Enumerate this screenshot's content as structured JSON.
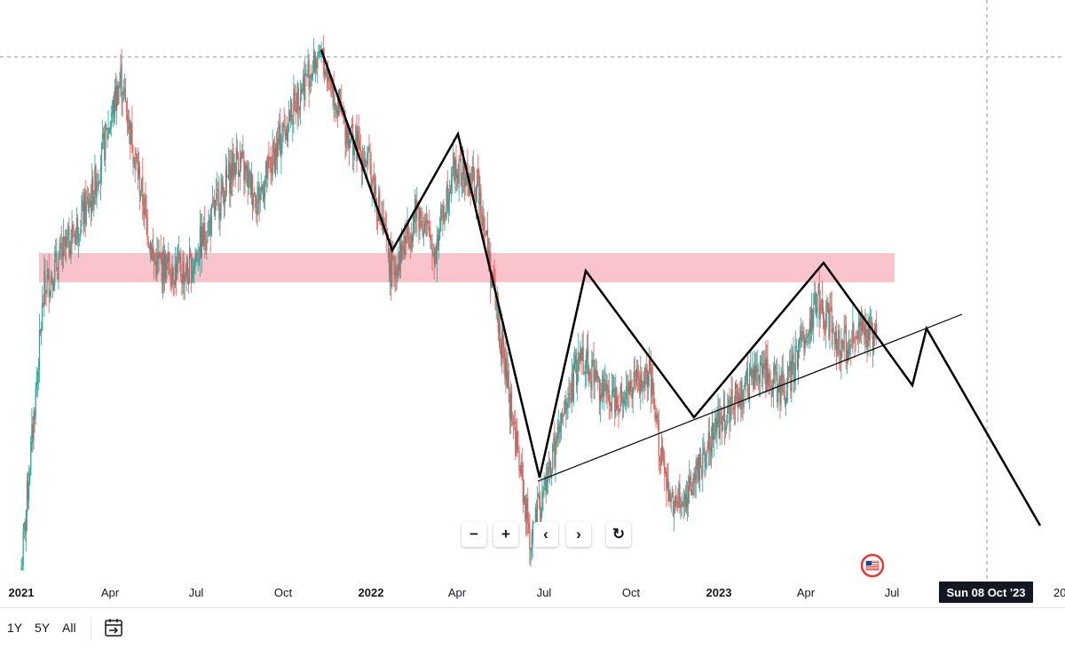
{
  "chart_data": {
    "type": "candlestick",
    "title": "",
    "x_axis_labels": [
      "2021",
      "Apr",
      "Jul",
      "Oct",
      "2022",
      "Apr",
      "Jul",
      "Oct",
      "2023",
      "Apr",
      "Jul",
      "20"
    ],
    "bold_labels": [
      "2021",
      "2022",
      "2023"
    ],
    "crosshair_date": "Sun 08 Oct '23",
    "series": [
      {
        "name": "",
        "swing_points": [
          [
            "2021-01-01",
            0.02
          ],
          [
            "2021-01-25",
            0.55
          ],
          [
            "2021-03-15",
            0.72
          ],
          [
            "2021-04-15",
            0.95
          ],
          [
            "2021-05-20",
            0.6
          ],
          [
            "2021-06-25",
            0.58
          ],
          [
            "2021-08-15",
            0.8
          ],
          [
            "2021-09-05",
            0.72
          ],
          [
            "2021-10-20",
            0.93
          ],
          [
            "2021-11-10",
            1.0
          ],
          [
            "2021-12-05",
            0.86
          ],
          [
            "2022-01-01",
            0.78
          ],
          [
            "2022-01-24",
            0.58
          ],
          [
            "2022-02-20",
            0.7
          ],
          [
            "2022-03-10",
            0.62
          ],
          [
            "2022-03-28",
            0.78
          ],
          [
            "2022-04-25",
            0.74
          ],
          [
            "2022-05-10",
            0.55
          ],
          [
            "2022-06-18",
            0.07
          ],
          [
            "2022-07-01",
            0.16
          ],
          [
            "2022-08-10",
            0.43
          ],
          [
            "2022-09-07",
            0.34
          ],
          [
            "2022-10-20",
            0.38
          ],
          [
            "2022-11-10",
            0.14
          ],
          [
            "2022-11-25",
            0.15
          ],
          [
            "2023-01-01",
            0.3
          ],
          [
            "2023-02-15",
            0.4
          ],
          [
            "2023-03-10",
            0.35
          ],
          [
            "2023-04-14",
            0.53
          ],
          [
            "2023-05-10",
            0.44
          ],
          [
            "2023-06-07",
            0.47
          ],
          [
            "2023-06-15",
            0.46
          ]
        ]
      }
    ],
    "annotations": {
      "resistance_zone_color": "#f9c4cb",
      "drawing_color": "#000000",
      "candle_up_color": "#26a69a",
      "candle_down_color": "#ef5350"
    },
    "grid": false,
    "crosshair": true
  },
  "controls": {
    "zoom_out": "−",
    "zoom_in": "+",
    "scroll_left": "‹",
    "scroll_right": "›",
    "reset": "↻"
  },
  "bottom_bar": {
    "ranges": [
      "1Y",
      "5Y",
      "All"
    ],
    "calendar_icon": "calendar-goto-icon"
  },
  "watermark_icon": "flag-badge-icon"
}
